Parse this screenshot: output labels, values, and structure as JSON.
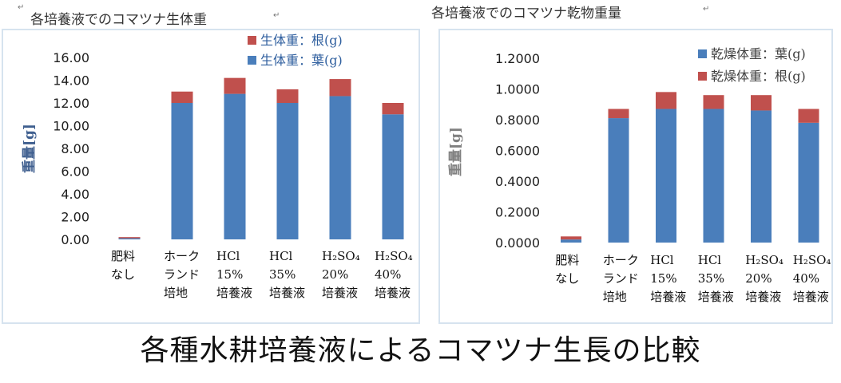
{
  "caption": "各種水耕培養液によるコマツナ生長の比較",
  "para_mark": "↵",
  "chart_data": [
    {
      "type": "bar",
      "stacked": true,
      "title": "各培養液でのコマツナ生体重",
      "ylabel": "重量[g]",
      "ylim": [
        0,
        16
      ],
      "yticks": [
        "0.00",
        "2.00",
        "4.00",
        "6.00",
        "8.00",
        "10.00",
        "12.00",
        "14.00",
        "16.00"
      ],
      "categories": [
        [
          "肥料",
          "なし"
        ],
        [
          "ホーク",
          "ランド",
          "培地"
        ],
        [
          "HCl",
          "15%",
          "培養液"
        ],
        [
          "HCl",
          "35%",
          "培養液"
        ],
        [
          "H₂SO₄",
          "20%",
          "培養液"
        ],
        [
          "H₂SO₄",
          "40%",
          "培養液"
        ]
      ],
      "series": [
        {
          "name": "生体重：葉(g)",
          "color": "#4a7ebb",
          "values": [
            0.1,
            12.0,
            12.8,
            12.0,
            12.6,
            11.0
          ]
        },
        {
          "name": "生体重：根(g)",
          "color": "#c0504d",
          "values": [
            0.1,
            1.0,
            1.4,
            1.2,
            1.5,
            1.0
          ]
        }
      ],
      "legend_order": [
        1,
        0
      ],
      "legend": "top-right",
      "ylabel_color": "#3f5f8f",
      "legend_text_color": "#2e5e9e"
    },
    {
      "type": "bar",
      "stacked": true,
      "title": "各培養液でのコマツナ乾物重量",
      "ylabel": "重量[g]",
      "ylim": [
        0,
        1.2
      ],
      "yticks": [
        "0.0000",
        "0.2000",
        "0.4000",
        "0.6000",
        "0.8000",
        "1.0000",
        "1.2000"
      ],
      "categories": [
        [
          "肥料",
          "なし"
        ],
        [
          "ホーク",
          "ランド",
          "培地"
        ],
        [
          "HCl",
          "15%",
          "培養液"
        ],
        [
          "HCl",
          "35%",
          "培養液"
        ],
        [
          "H₂SO₄",
          "20%",
          "培養液"
        ],
        [
          "H₂SO₄",
          "40%",
          "培養液"
        ]
      ],
      "series": [
        {
          "name": "乾燥体重：葉(g)",
          "color": "#4a7ebb",
          "values": [
            0.02,
            0.81,
            0.87,
            0.87,
            0.86,
            0.78
          ]
        },
        {
          "name": "乾燥体重：根(g)",
          "color": "#c0504d",
          "values": [
            0.02,
            0.06,
            0.11,
            0.09,
            0.1,
            0.09
          ]
        }
      ],
      "legend_order": [
        0,
        1
      ],
      "legend": "top-right",
      "ylabel_color": "#808080",
      "legend_text_color": "#404040"
    }
  ]
}
